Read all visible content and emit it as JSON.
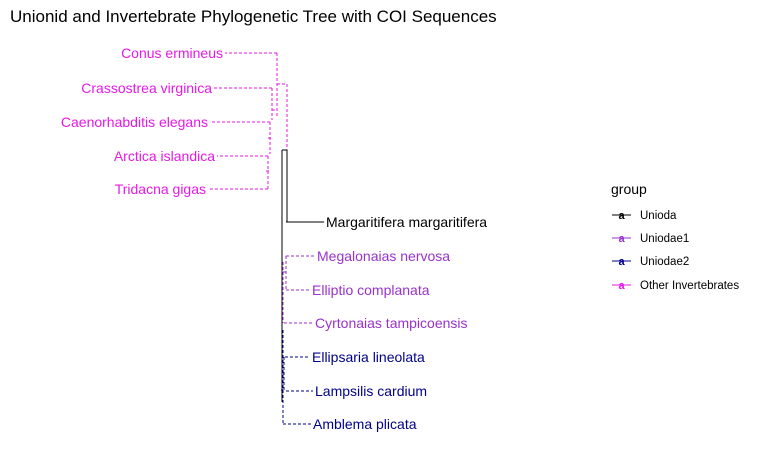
{
  "title": "Unionid and Invertebrate Phylogenetic Tree with COI Sequences",
  "colors": {
    "Unioda": "#000000",
    "Uniodae1": "#9932CC",
    "Uniodae2": "#00008B",
    "Other Invertebrates": "#E619E6"
  },
  "legend": {
    "title": "group",
    "key_glyph": "a",
    "items": [
      {
        "label": "Unioda",
        "group": "Unioda"
      },
      {
        "label": "Uniodae1",
        "group": "Uniodae1"
      },
      {
        "label": "Uniodae2",
        "group": "Uniodae2"
      },
      {
        "label": "Other Invertebrates",
        "group": "Other Invertebrates"
      }
    ]
  },
  "tips": [
    {
      "label": "Conus ermineus",
      "group": "Other Invertebrates"
    },
    {
      "label": "Crassostrea virginica",
      "group": "Other Invertebrates"
    },
    {
      "label": "Caenorhabditis elegans",
      "group": "Other Invertebrates"
    },
    {
      "label": "Arctica islandica",
      "group": "Other Invertebrates"
    },
    {
      "label": "Tridacna gigas",
      "group": "Other Invertebrates"
    },
    {
      "label": "Margaritifera margaritifera",
      "group": "Unioda"
    },
    {
      "label": "Megalonaias nervosa",
      "group": "Uniodae1"
    },
    {
      "label": "Elliptio complanata",
      "group": "Uniodae1"
    },
    {
      "label": "Cyrtonaias tampicoensis",
      "group": "Uniodae1"
    },
    {
      "label": "Ellipsaria lineolata",
      "group": "Uniodae2"
    },
    {
      "label": "Lampsilis cardium",
      "group": "Uniodae2"
    },
    {
      "label": "Amblema plicata",
      "group": "Uniodae2"
    }
  ]
}
